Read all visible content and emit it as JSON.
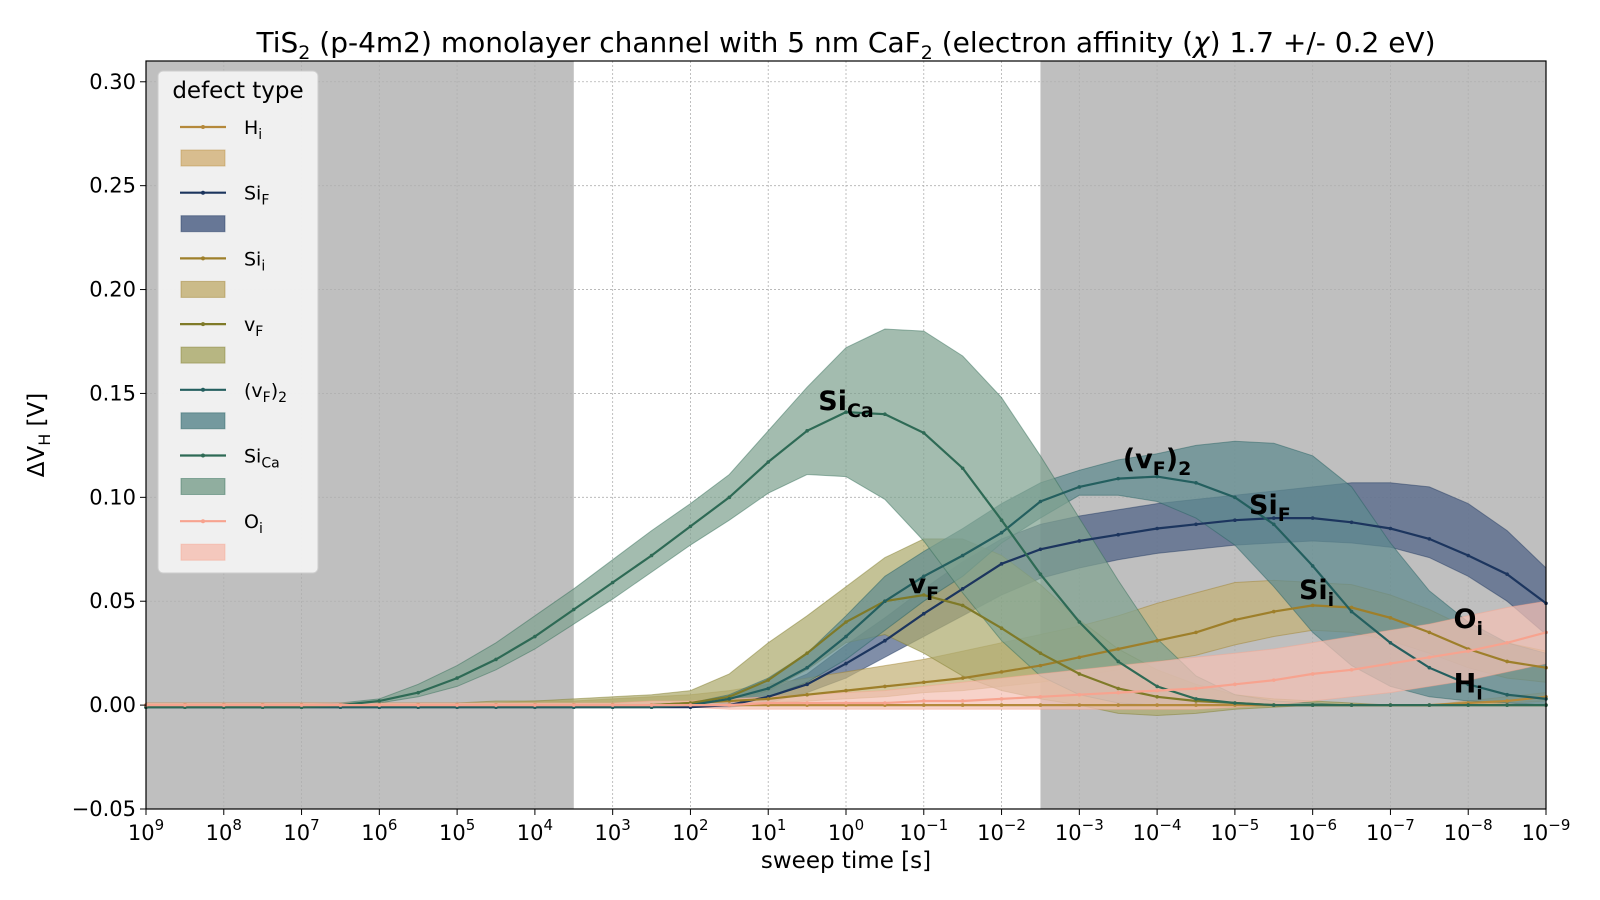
{
  "chart_data": {
    "type": "line",
    "title": {
      "main": "TiS",
      "sub": "2",
      "mid": " (p-4m2) monolayer channel with 5 nm CaF",
      "sub2": "2",
      "tail": " (electron affinity (",
      "chi": "χ",
      "end": ") 1.7 +/- 0.2 eV)"
    },
    "xlabel": "sweep time [s]",
    "ylabel": {
      "main": "ΔV",
      "sub": "H",
      "unit": " [V]"
    },
    "x_scale": "log-reversed",
    "x_exponents": [
      9,
      8.5,
      8,
      7.5,
      7,
      6.5,
      6,
      5.5,
      5,
      4.5,
      4,
      3.5,
      3,
      2.5,
      2,
      1.5,
      1,
      0.5,
      0,
      -0.5,
      -1,
      -1.5,
      -2,
      -2.5,
      -3,
      -3.5,
      -4,
      -4.5,
      -5,
      -5.5,
      -6,
      -6.5,
      -7,
      -7.5,
      -8,
      -8.5,
      -9
    ],
    "x_ticks": [
      {
        "base": "10",
        "exp": "9",
        "value": 9
      },
      {
        "base": "10",
        "exp": "8",
        "value": 8
      },
      {
        "base": "10",
        "exp": "7",
        "value": 7
      },
      {
        "base": "10",
        "exp": "6",
        "value": 6
      },
      {
        "base": "10",
        "exp": "5",
        "value": 5
      },
      {
        "base": "10",
        "exp": "4",
        "value": 4
      },
      {
        "base": "10",
        "exp": "3",
        "value": 3
      },
      {
        "base": "10",
        "exp": "2",
        "value": 2
      },
      {
        "base": "10",
        "exp": "1",
        "value": 1
      },
      {
        "base": "10",
        "exp": "0",
        "value": 0
      },
      {
        "base": "10",
        "exp": "−1",
        "value": -1
      },
      {
        "base": "10",
        "exp": "−2",
        "value": -2
      },
      {
        "base": "10",
        "exp": "−3",
        "value": -3
      },
      {
        "base": "10",
        "exp": "−4",
        "value": -4
      },
      {
        "base": "10",
        "exp": "−5",
        "value": -5
      },
      {
        "base": "10",
        "exp": "−6",
        "value": -6
      },
      {
        "base": "10",
        "exp": "−7",
        "value": -7
      },
      {
        "base": "10",
        "exp": "−8",
        "value": -8
      },
      {
        "base": "10",
        "exp": "−9",
        "value": -9
      }
    ],
    "y_ticks": [
      {
        "label": "−0.05",
        "value": -0.05
      },
      {
        "label": "0.00",
        "value": 0.0
      },
      {
        "label": "0.05",
        "value": 0.05
      },
      {
        "label": "0.10",
        "value": 0.1
      },
      {
        "label": "0.15",
        "value": 0.15
      },
      {
        "label": "0.20",
        "value": 0.2
      },
      {
        "label": "0.25",
        "value": 0.25
      },
      {
        "label": "0.30",
        "value": 0.3
      }
    ],
    "xlim": [
      9,
      -9
    ],
    "ylim": [
      -0.05,
      0.31
    ],
    "grid": true,
    "shaded_regions": [
      {
        "from": 9,
        "to": 3.5,
        "color": "#bfbfbf"
      },
      {
        "from": -2.5,
        "to": -9,
        "color": "#bfbfbf"
      }
    ],
    "legend": {
      "title": "defect type",
      "placement": "top-left"
    },
    "series": [
      {
        "name": {
          "main": "H",
          "sub": "i"
        },
        "color": "#b5893b",
        "band_color": "#d4b47e",
        "y": [
          0,
          0,
          0,
          0,
          0,
          0,
          0,
          0,
          0,
          0,
          0,
          0,
          0,
          0,
          0,
          0,
          0,
          0,
          0,
          0,
          0,
          0,
          0,
          0,
          0,
          0,
          0,
          0,
          0,
          0,
          0,
          0,
          0,
          0,
          0.001,
          0.002,
          0.004
        ],
        "lo": [
          0,
          0,
          0,
          0,
          0,
          0,
          0,
          0,
          0,
          0,
          0,
          0,
          0,
          0,
          0,
          0,
          0,
          0,
          0,
          0,
          0,
          0,
          0,
          0,
          0,
          0,
          0,
          0,
          0,
          0,
          0,
          0,
          0,
          0,
          0,
          0.001,
          0.002
        ],
        "hi": [
          0,
          0,
          0,
          0,
          0,
          0,
          0,
          0,
          0,
          0,
          0,
          0,
          0,
          0,
          0,
          0,
          0,
          0,
          0,
          0,
          0,
          0,
          0,
          0,
          0,
          0,
          0,
          0,
          0,
          0,
          0,
          0,
          0,
          0,
          0.002,
          0.004,
          0.006
        ]
      },
      {
        "name": {
          "main": "Si",
          "sub": "F"
        },
        "color": "#1c355e",
        "band_color": "#4f6286",
        "y": [
          -0.001,
          -0.001,
          -0.001,
          -0.001,
          -0.001,
          -0.001,
          -0.001,
          -0.001,
          -0.001,
          -0.001,
          -0.001,
          -0.001,
          -0.001,
          -0.001,
          -0.001,
          0,
          0.004,
          0.01,
          0.02,
          0.031,
          0.044,
          0.056,
          0.068,
          0.075,
          0.079,
          0.082,
          0.085,
          0.087,
          0.089,
          0.09,
          0.09,
          0.088,
          0.085,
          0.08,
          0.072,
          0.063,
          0.049
        ],
        "lo": [
          -0.001,
          -0.001,
          -0.001,
          -0.001,
          -0.001,
          -0.001,
          -0.001,
          -0.001,
          -0.001,
          -0.001,
          -0.001,
          -0.001,
          -0.001,
          -0.001,
          -0.001,
          -0.001,
          0.001,
          0.006,
          0.013,
          0.023,
          0.033,
          0.043,
          0.053,
          0.061,
          0.066,
          0.07,
          0.073,
          0.075,
          0.077,
          0.078,
          0.079,
          0.078,
          0.076,
          0.071,
          0.062,
          0.05,
          0.034
        ],
        "hi": [
          0,
          0,
          0,
          0,
          0,
          0,
          0,
          0,
          0,
          0,
          0,
          0,
          0,
          0,
          0,
          0.001,
          0.007,
          0.015,
          0.029,
          0.042,
          0.056,
          0.069,
          0.08,
          0.087,
          0.091,
          0.094,
          0.097,
          0.099,
          0.101,
          0.103,
          0.105,
          0.107,
          0.107,
          0.105,
          0.097,
          0.084,
          0.066
        ]
      },
      {
        "name": {
          "main": "Si",
          "sub": "i"
        },
        "color": "#9e7f2a",
        "band_color": "#c4b177",
        "y": [
          0,
          0,
          0,
          0,
          0,
          0,
          0,
          0,
          0,
          0,
          0,
          0,
          0,
          0,
          0.001,
          0.002,
          0.003,
          0.005,
          0.007,
          0.009,
          0.011,
          0.013,
          0.016,
          0.019,
          0.023,
          0.027,
          0.031,
          0.035,
          0.041,
          0.045,
          0.048,
          0.047,
          0.042,
          0.035,
          0.027,
          0.021,
          0.018
        ],
        "lo": [
          0,
          0,
          0,
          0,
          0,
          0,
          0,
          0,
          0,
          0,
          0,
          0,
          0,
          0,
          0,
          0.001,
          0.001,
          0.002,
          0.003,
          0.004,
          0.006,
          0.007,
          0.009,
          0.011,
          0.014,
          0.017,
          0.021,
          0.024,
          0.029,
          0.033,
          0.036,
          0.035,
          0.031,
          0.025,
          0.018,
          0.013,
          0.011
        ],
        "hi": [
          0.001,
          0.001,
          0.001,
          0.001,
          0.001,
          0.001,
          0.001,
          0.001,
          0.001,
          0.001,
          0.002,
          0.002,
          0.003,
          0.004,
          0.005,
          0.007,
          0.01,
          0.013,
          0.016,
          0.019,
          0.022,
          0.026,
          0.03,
          0.034,
          0.038,
          0.043,
          0.049,
          0.054,
          0.059,
          0.06,
          0.059,
          0.058,
          0.053,
          0.046,
          0.037,
          0.03,
          0.026
        ]
      },
      {
        "name": {
          "main": "v",
          "sub": "F"
        },
        "color": "#7f7a28",
        "band_color": "#adab6e",
        "y": [
          0,
          0,
          0,
          0,
          0,
          0,
          0,
          0,
          0,
          0,
          0,
          0,
          0,
          0,
          0.001,
          0.004,
          0.012,
          0.025,
          0.04,
          0.05,
          0.053,
          0.048,
          0.037,
          0.025,
          0.015,
          0.008,
          0.004,
          0.002,
          0.001,
          0,
          0,
          0,
          0,
          0,
          0,
          0,
          0
        ],
        "lo": [
          0,
          0,
          0,
          0,
          0,
          0,
          0,
          0,
          0,
          0,
          0,
          0,
          0,
          0,
          0,
          0.002,
          0.007,
          0.017,
          0.03,
          0.034,
          0.025,
          0.014,
          0.007,
          0.003,
          0,
          -0.004,
          -0.005,
          -0.004,
          -0.002,
          -0.001,
          0,
          0,
          0,
          0,
          0,
          0,
          0
        ],
        "hi": [
          0.001,
          0.001,
          0.001,
          0.001,
          0.001,
          0.001,
          0.001,
          0.001,
          0.001,
          0.002,
          0.002,
          0.003,
          0.004,
          0.005,
          0.007,
          0.015,
          0.03,
          0.043,
          0.057,
          0.071,
          0.08,
          0.08,
          0.072,
          0.058,
          0.041,
          0.027,
          0.017,
          0.01,
          0.005,
          0.003,
          0.002,
          0.001,
          0,
          0,
          0,
          0,
          0
        ]
      },
      {
        "name": {
          "main": "(v",
          "sub": "F",
          "tail": ")",
          "sub2": "2"
        },
        "color": "#245f5f",
        "band_color": "#5e8a8f",
        "y": [
          -0.001,
          -0.001,
          -0.001,
          -0.001,
          -0.001,
          -0.001,
          -0.001,
          -0.001,
          -0.001,
          -0.001,
          -0.001,
          -0.001,
          -0.001,
          -0.001,
          0,
          0.003,
          0.008,
          0.018,
          0.033,
          0.05,
          0.062,
          0.072,
          0.083,
          0.098,
          0.105,
          0.109,
          0.11,
          0.107,
          0.1,
          0.087,
          0.067,
          0.045,
          0.03,
          0.018,
          0.01,
          0.005,
          0.003
        ],
        "lo": [
          -0.001,
          -0.001,
          -0.001,
          -0.001,
          -0.001,
          -0.001,
          -0.001,
          -0.001,
          -0.001,
          -0.001,
          -0.001,
          -0.001,
          -0.001,
          -0.001,
          -0.001,
          0.001,
          0.004,
          0.011,
          0.022,
          0.036,
          0.05,
          0.062,
          0.078,
          0.09,
          0.101,
          0.101,
          0.098,
          0.09,
          0.077,
          0.057,
          0.035,
          0.019,
          0.009,
          0.004,
          0.002,
          0.001,
          0
        ],
        "hi": [
          0,
          0,
          0,
          0,
          0,
          0,
          0,
          0,
          0,
          0,
          0,
          0,
          0,
          0,
          0.001,
          0.005,
          0.013,
          0.025,
          0.043,
          0.062,
          0.074,
          0.085,
          0.097,
          0.107,
          0.113,
          0.118,
          0.121,
          0.125,
          0.127,
          0.126,
          0.12,
          0.105,
          0.078,
          0.055,
          0.04,
          0.03,
          0.025
        ]
      },
      {
        "name": {
          "main": "Si",
          "sub": "Ca"
        },
        "color": "#2e6a55",
        "band_color": "#7fa290",
        "y": [
          -0.001,
          -0.001,
          -0.001,
          -0.001,
          -0.001,
          0,
          0.002,
          0.006,
          0.013,
          0.022,
          0.033,
          0.046,
          0.059,
          0.072,
          0.086,
          0.1,
          0.117,
          0.132,
          0.141,
          0.14,
          0.131,
          0.114,
          0.089,
          0.063,
          0.04,
          0.021,
          0.009,
          0.003,
          0.001,
          0,
          0,
          0,
          0,
          0,
          0,
          0,
          0
        ],
        "lo": [
          -0.001,
          -0.001,
          -0.001,
          -0.001,
          -0.001,
          -0.001,
          0.001,
          0.004,
          0.009,
          0.017,
          0.027,
          0.039,
          0.051,
          0.064,
          0.077,
          0.089,
          0.102,
          0.111,
          0.11,
          0.099,
          0.079,
          0.054,
          0.031,
          0.014,
          0.005,
          0.001,
          0,
          0,
          0,
          0,
          0,
          0,
          0,
          0,
          0,
          0,
          0
        ],
        "hi": [
          0,
          0,
          0,
          0,
          0,
          0.001,
          0.003,
          0.01,
          0.019,
          0.03,
          0.043,
          0.056,
          0.07,
          0.084,
          0.097,
          0.111,
          0.132,
          0.153,
          0.172,
          0.181,
          0.18,
          0.168,
          0.148,
          0.12,
          0.09,
          0.06,
          0.032,
          0.014,
          0.005,
          0.002,
          0.001,
          0,
          0,
          0,
          0,
          0,
          0
        ]
      },
      {
        "name": {
          "main": "O",
          "sub": "i"
        },
        "color": "#f7a38f",
        "band_color": "#f4c1b4",
        "y": [
          0,
          0,
          0,
          0,
          0,
          0,
          0,
          0,
          0,
          0,
          0,
          0,
          0,
          0,
          0,
          0,
          0.001,
          0.001,
          0.001,
          0.001,
          0.002,
          0.002,
          0.003,
          0.004,
          0.005,
          0.006,
          0.007,
          0.008,
          0.01,
          0.012,
          0.015,
          0.017,
          0.02,
          0.023,
          0.026,
          0.03,
          0.035
        ],
        "lo": [
          0,
          0,
          0,
          0,
          0,
          0,
          0,
          0,
          0,
          0,
          0,
          0,
          0,
          -0.001,
          -0.001,
          -0.002,
          -0.002,
          -0.002,
          -0.002,
          -0.002,
          -0.002,
          -0.002,
          -0.002,
          -0.002,
          -0.002,
          -0.002,
          -0.002,
          -0.002,
          -0.001,
          0,
          0.002,
          0.004,
          0.006,
          0.009,
          0.012,
          0.016,
          0.02
        ],
        "hi": [
          0.001,
          0.001,
          0.001,
          0.001,
          0.001,
          0.001,
          0.001,
          0.001,
          0.001,
          0.001,
          0.001,
          0.001,
          0.001,
          0.002,
          0.002,
          0.003,
          0.004,
          0.005,
          0.006,
          0.007,
          0.009,
          0.011,
          0.013,
          0.015,
          0.017,
          0.019,
          0.021,
          0.023,
          0.025,
          0.027,
          0.03,
          0.033,
          0.036,
          0.039,
          0.043,
          0.047,
          0.05
        ]
      }
    ],
    "annotations": [
      {
        "main": "Si",
        "sub": "Ca",
        "x": 0,
        "y": 0.142
      },
      {
        "main": "(v",
        "sub": "F",
        "tail": ")",
        "sub2": "2",
        "x": -4,
        "y": 0.114
      },
      {
        "main": "Si",
        "sub": "F",
        "x": -5.45,
        "y": 0.092
      },
      {
        "main": "v",
        "sub": "F",
        "x": -1,
        "y": 0.054
      },
      {
        "main": "Si",
        "sub": "i",
        "x": -6.05,
        "y": 0.051
      },
      {
        "main": "O",
        "sub": "i",
        "x": -8,
        "y": 0.037
      },
      {
        "main": "H",
        "sub": "i",
        "x": -8,
        "y": 0.006
      }
    ]
  }
}
